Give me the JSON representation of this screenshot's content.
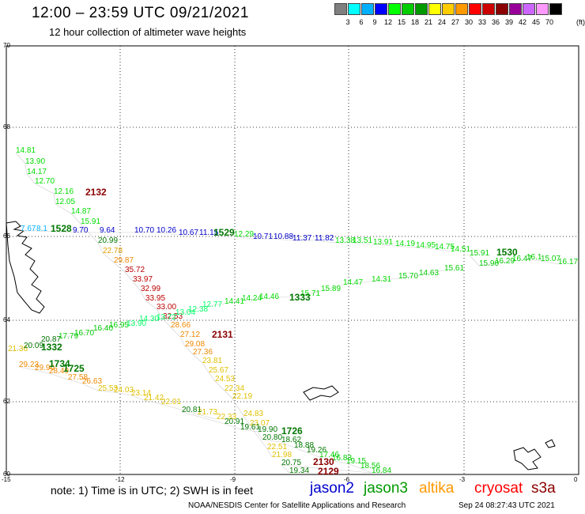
{
  "header": {
    "title": "12:00 – 23:59 UTC 09/21/2021",
    "subtitle": "12 hour collection of altimeter wave heights"
  },
  "legend": {
    "swatches": [
      {
        "color": "#808080",
        "label": "3"
      },
      {
        "color": "#00ffff",
        "label": "6"
      },
      {
        "color": "#00b0ff",
        "label": "9"
      },
      {
        "color": "#0000ff",
        "label": "12"
      },
      {
        "color": "#00ff00",
        "label": "15"
      },
      {
        "color": "#00cc00",
        "label": "18"
      },
      {
        "color": "#009900",
        "label": "21"
      },
      {
        "color": "#ffff00",
        "label": "24"
      },
      {
        "color": "#ffcc00",
        "label": "27"
      },
      {
        "color": "#ff9900",
        "label": "30"
      },
      {
        "color": "#ff0000",
        "label": "33"
      },
      {
        "color": "#cc0000",
        "label": "36"
      },
      {
        "color": "#8b0000",
        "label": "39"
      },
      {
        "color": "#990099",
        "label": "42"
      },
      {
        "color": "#cc66ff",
        "label": "45"
      },
      {
        "color": "#ff99ff",
        "label": "70"
      },
      {
        "color": "#000000",
        "label": ""
      }
    ],
    "unit": "(ft)"
  },
  "axes": {
    "lat_ticks": [
      "70",
      "68",
      "66",
      "64",
      "62",
      "60"
    ],
    "lon_ticks": [
      "-15",
      "-12",
      "-9",
      "-6",
      "-3",
      "0"
    ]
  },
  "map": {
    "passes": [
      {
        "id": "2132",
        "color": "#8b0000",
        "labels": [
          {
            "v": "14.81",
            "c": "#00dd00"
          },
          {
            "v": "13.90",
            "c": "#00dd00"
          },
          {
            "v": "14.17",
            "c": "#00dd00"
          },
          {
            "v": "12.70",
            "c": "#00dd00"
          },
          {
            "v": "12.16",
            "c": "#00dd00"
          },
          {
            "v": "12.05",
            "c": "#00dd00"
          },
          {
            "v": "14.87",
            "c": "#00dd00"
          },
          {
            "v": "15.91",
            "c": "#00dd00"
          },
          {
            "v": "20.99",
            "c": "#007700"
          },
          {
            "v": "22.78",
            "c": "#e0a000"
          },
          {
            "v": "29.87",
            "c": "#ee8800"
          },
          {
            "v": "35.72",
            "c": "#bb0000"
          },
          {
            "v": "33.97",
            "c": "#bb0000"
          },
          {
            "v": "32.99",
            "c": "#bb0000"
          },
          {
            "v": "33.95",
            "c": "#bb0000"
          },
          {
            "v": "33.00",
            "c": "#bb0000"
          },
          {
            "v": "32.53",
            "c": "#bb0000"
          },
          {
            "v": "28.66",
            "c": "#ee8800"
          },
          {
            "v": "27.12",
            "c": "#ee8800"
          },
          {
            "v": "29.08",
            "c": "#ee8800"
          },
          {
            "v": "27.36",
            "c": "#ee8800"
          },
          {
            "v": "23.81",
            "c": "#e0c000"
          },
          {
            "v": "25.67",
            "c": "#e0c000"
          },
          {
            "v": "24.53",
            "c": "#e0c000"
          },
          {
            "v": "22.34",
            "c": "#e0c000"
          },
          {
            "v": "22.19",
            "c": "#e0c000"
          },
          {
            "v": "24.83",
            "c": "#e0c000"
          },
          {
            "v": "23.07",
            "c": "#e0c000"
          },
          {
            "v": "22.51",
            "c": "#e0c000"
          },
          {
            "v": "21.98",
            "c": "#e0c000"
          }
        ]
      },
      {
        "id": "1528",
        "color": "#007700",
        "labels": [
          {
            "v": "7.67",
            "c": "#00b0ff"
          },
          {
            "v": "8.1",
            "c": "#00b0ff"
          },
          {
            "v": "9.70",
            "c": "#0000cc"
          },
          {
            "v": "9.64",
            "c": "#0000cc"
          },
          {
            "v": "10.70",
            "c": "#0000cc"
          },
          {
            "v": "10.26",
            "c": "#0000cc"
          },
          {
            "v": "10.67",
            "c": "#0000cc"
          },
          {
            "v": "11.15",
            "c": "#0000cc"
          }
        ]
      },
      {
        "id": "1529",
        "color": "#007700",
        "labels": [
          {
            "v": "12.29",
            "c": "#00dd00"
          },
          {
            "v": "10.71",
            "c": "#0000cc"
          },
          {
            "v": "10.88",
            "c": "#0000cc"
          },
          {
            "v": "11.37",
            "c": "#0000cc"
          },
          {
            "v": "11.82",
            "c": "#0000cc"
          },
          {
            "v": "13.38",
            "c": "#00dd00"
          },
          {
            "v": "13.51",
            "c": "#00dd00"
          },
          {
            "v": "13.91",
            "c": "#00dd00"
          },
          {
            "v": "14.19",
            "c": "#00dd00"
          },
          {
            "v": "14.95",
            "c": "#00dd00"
          },
          {
            "v": "14.75",
            "c": "#00dd00"
          },
          {
            "v": "14.51",
            "c": "#00dd00"
          }
        ]
      },
      {
        "id": "1530",
        "color": "#007700",
        "labels": [
          {
            "v": "15.91",
            "c": "#00cc00"
          },
          {
            "v": "15.90",
            "c": "#00cc00"
          },
          {
            "v": "16.29",
            "c": "#00cc00"
          },
          {
            "v": "16.47",
            "c": "#00cc00"
          },
          {
            "v": "16.1",
            "c": "#00cc00"
          },
          {
            "v": "15.07",
            "c": "#00cc00"
          },
          {
            "v": "16.17",
            "c": "#00cc00"
          }
        ]
      },
      {
        "id": "1332",
        "color": "#007700",
        "labels": [
          {
            "v": "21.36",
            "c": "#e0c000"
          },
          {
            "v": "20.09",
            "c": "#007700"
          },
          {
            "v": "20.87",
            "c": "#007700"
          },
          {
            "v": "17.79",
            "c": "#00cc00"
          },
          {
            "v": "16.70",
            "c": "#00cc00"
          },
          {
            "v": "16.40",
            "c": "#00cc00"
          },
          {
            "v": "16.95",
            "c": "#00cc00"
          }
        ]
      },
      {
        "id": "1333",
        "color": "#007700",
        "labels": [
          {
            "v": "13.90",
            "c": "#00ff66"
          },
          {
            "v": "14.30",
            "c": "#00ff66"
          },
          {
            "v": "13.72",
            "c": "#00ff66"
          },
          {
            "v": "13.04",
            "c": "#00ff66"
          },
          {
            "v": "12.38",
            "c": "#00ff66"
          },
          {
            "v": "12.77",
            "c": "#00ff66"
          },
          {
            "v": "14.41",
            "c": "#00dd00"
          },
          {
            "v": "14.24",
            "c": "#00dd00"
          },
          {
            "v": "14.46",
            "c": "#00dd00"
          },
          {
            "v": "15.71",
            "c": "#00dd00"
          },
          {
            "v": "15.89",
            "c": "#00dd00"
          },
          {
            "v": "14.47",
            "c": "#00dd00"
          },
          {
            "v": "14.31",
            "c": "#00dd00"
          },
          {
            "v": "15.70",
            "c": "#00cc00"
          },
          {
            "v": "14.63",
            "c": "#00cc00"
          },
          {
            "v": "15.61",
            "c": "#00cc00"
          }
        ]
      },
      {
        "id": "1734",
        "color": "#007700",
        "labels": [
          {
            "v": "29.23",
            "c": "#ee8800"
          },
          {
            "v": "29.90",
            "c": "#ee8800"
          },
          {
            "v": "28.49",
            "c": "#ee8800"
          },
          {
            "v": "27.58",
            "c": "#ee8800"
          },
          {
            "v": "26.63",
            "c": "#ee8800"
          },
          {
            "v": "25.53",
            "c": "#e0c000"
          },
          {
            "v": "24.03",
            "c": "#e0c000"
          },
          {
            "v": "23.14",
            "c": "#e0c000"
          },
          {
            "v": "21.42",
            "c": "#e0c000"
          },
          {
            "v": "22.01",
            "c": "#e0c000"
          },
          {
            "v": "21.73",
            "c": "#e0c000"
          },
          {
            "v": "22.33",
            "c": "#e0c000"
          }
        ]
      },
      {
        "id": "1725",
        "color": "#007700",
        "labels": []
      },
      {
        "id": "1726",
        "color": "#007700",
        "labels": [
          {
            "v": "20.81",
            "c": "#007700"
          },
          {
            "v": "20.91",
            "c": "#007700"
          },
          {
            "v": "19.61",
            "c": "#007700"
          },
          {
            "v": "19.90",
            "c": "#007700"
          },
          {
            "v": "20.80",
            "c": "#007700"
          },
          {
            "v": "18.62",
            "c": "#007700"
          },
          {
            "v": "18.88",
            "c": "#007700"
          },
          {
            "v": "19.26",
            "c": "#007700"
          },
          {
            "v": "17.46",
            "c": "#00cc00"
          },
          {
            "v": "16.83",
            "c": "#00cc00"
          },
          {
            "v": "19.15",
            "c": "#00cc00"
          },
          {
            "v": "18.56",
            "c": "#00cc00"
          },
          {
            "v": "16.84",
            "c": "#00cc00"
          },
          {
            "v": "20.75",
            "c": "#007700"
          },
          {
            "v": "19.34",
            "c": "#007700"
          }
        ]
      },
      {
        "id": "2131",
        "color": "#8b0000",
        "labels": []
      },
      {
        "id": "2130",
        "color": "#8b0000",
        "labels": []
      },
      {
        "id": "2129",
        "color": "#8b0000",
        "labels": []
      }
    ]
  },
  "footer": {
    "note": "note:  1) Time is in UTC;  2) SWH is in feet",
    "satellites": [
      {
        "name": "jason2",
        "color": "#0000cc"
      },
      {
        "name": "jason3",
        "color": "#009900"
      },
      {
        "name": "altika",
        "color": "#ff9900"
      },
      {
        "name": "cryosat",
        "color": "#ff0000"
      },
      {
        "name": "s3a",
        "color": "#8b0000"
      }
    ],
    "credit": "NOAA/NESDIS Center for Satellite Applications and Research",
    "stamp": "Sep 24 08:27:43 UTC 2021"
  }
}
